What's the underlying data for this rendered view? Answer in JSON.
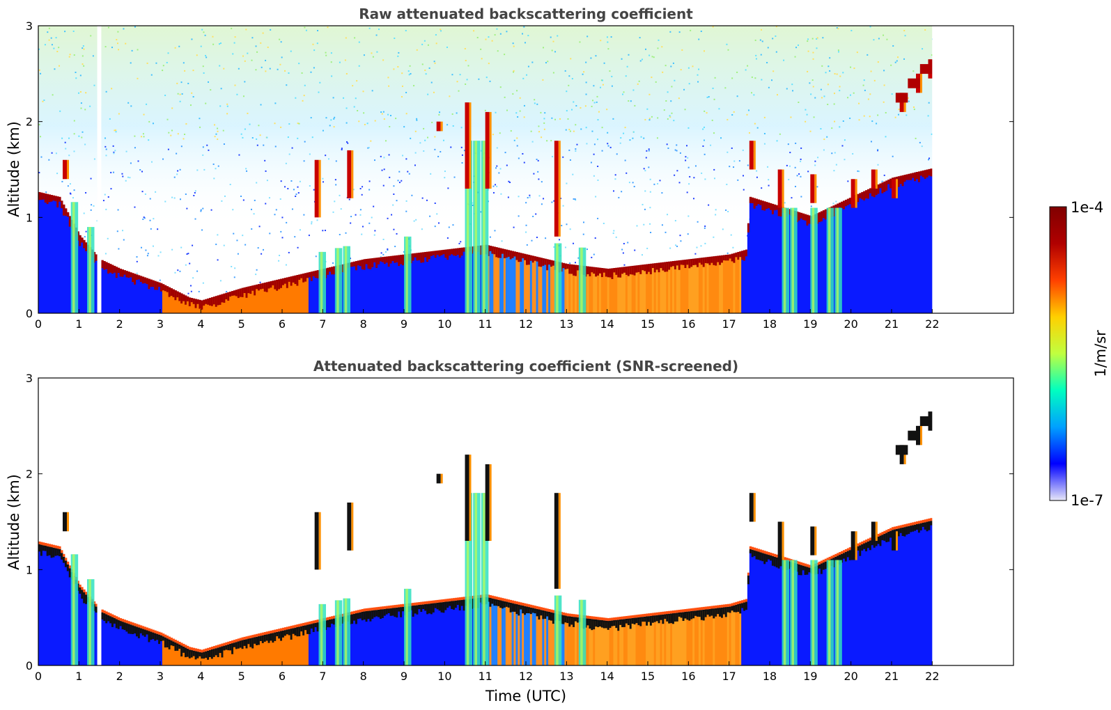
{
  "chart_data": [
    {
      "type": "heatmap",
      "title": "Raw attenuated backscattering coefficient",
      "xlabel": "",
      "ylabel": "Altitude (km)",
      "xlim": [
        0,
        24
      ],
      "ylim": [
        0,
        3
      ],
      "xticks": [
        0,
        1,
        2,
        3,
        4,
        5,
        6,
        7,
        8,
        9,
        10,
        11,
        12,
        13,
        14,
        15,
        16,
        17,
        18,
        19,
        20,
        21,
        22
      ],
      "yticks": [
        0,
        1,
        2,
        3
      ],
      "data_end_hour": 22,
      "gap_hours": [
        1.45,
        1.55
      ],
      "layer_height_km": [
        [
          0,
          1.25
        ],
        [
          0.5,
          1.2
        ],
        [
          1,
          0.8
        ],
        [
          1.5,
          0.55
        ],
        [
          2,
          0.45
        ],
        [
          3,
          0.3
        ],
        [
          3.7,
          0.15
        ],
        [
          4,
          0.12
        ],
        [
          5,
          0.25
        ],
        [
          6,
          0.35
        ],
        [
          6.5,
          0.4
        ],
        [
          7,
          0.45
        ],
        [
          8,
          0.55
        ],
        [
          9,
          0.6
        ],
        [
          10,
          0.65
        ],
        [
          11,
          0.7
        ],
        [
          12,
          0.6
        ],
        [
          13,
          0.5
        ],
        [
          14,
          0.45
        ],
        [
          15,
          0.5
        ],
        [
          16,
          0.55
        ],
        [
          17,
          0.6
        ],
        [
          17.4,
          0.65
        ]
      ]
    },
    {
      "type": "heatmap",
      "title": "Attenuated backscattering coefficient (SNR-screened)",
      "xlabel": "Time (UTC)",
      "ylabel": "Altitude (km)",
      "xlim": [
        0,
        24
      ],
      "ylim": [
        0,
        3
      ],
      "xticks": [
        0,
        1,
        2,
        3,
        4,
        5,
        6,
        7,
        8,
        9,
        10,
        11,
        12,
        13,
        14,
        15,
        16,
        17,
        18,
        19,
        20,
        21,
        22
      ],
      "yticks": [
        0,
        1,
        2,
        3
      ],
      "data_end_hour": 22
    }
  ],
  "colorbar": {
    "label": "1/m/sr",
    "max_label": "1e-4",
    "min_label": "1e-7",
    "colormap": "jet",
    "stops": [
      "#e8e8f8",
      "#0000ff",
      "#00a0ff",
      "#00ffc0",
      "#c0ff40",
      "#ffd000",
      "#ff4000",
      "#b00000",
      "#800000"
    ]
  }
}
